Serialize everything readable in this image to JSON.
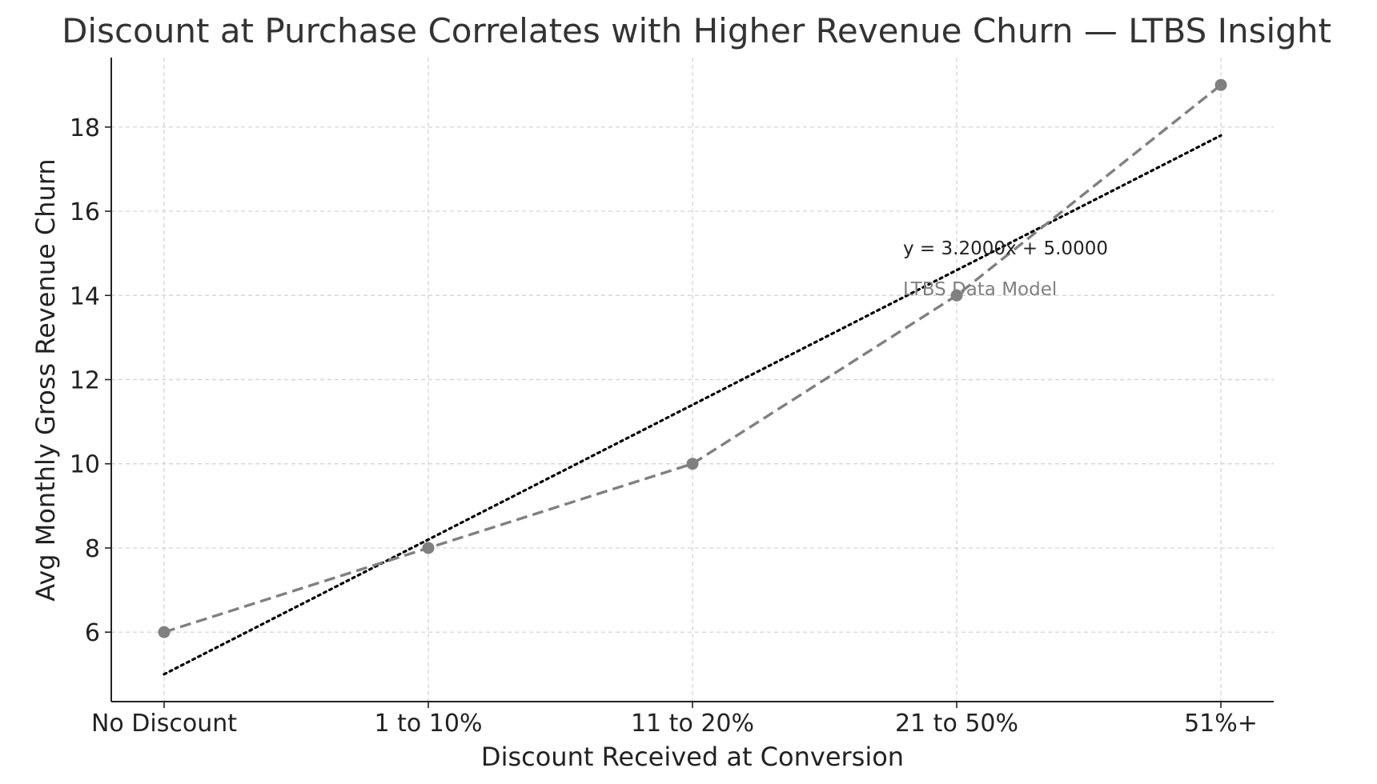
{
  "chart_data": {
    "type": "line",
    "title": "Discount at Purchase Correlates with Higher Revenue Churn — LTBS Insight",
    "xlabel": "Discount Received at Conversion",
    "ylabel": "Avg Monthly Gross Revenue Churn",
    "categories": [
      "No Discount",
      "1 to 10%",
      "11 to 20%",
      "21 to 50%",
      "51%+"
    ],
    "series": [
      {
        "values": [
          6,
          8,
          10,
          14,
          19
        ],
        "color": "#808080",
        "line_style": "dashed",
        "marker": "circle"
      }
    ],
    "trendline": {
      "slope": 3.2,
      "intercept": 5.0,
      "start": 5.0,
      "end": 17.8,
      "color": "#000000",
      "line_style": "dotted"
    },
    "annotations": [
      {
        "text": "y = 3.2000x + 5.0000",
        "style": "equation"
      },
      {
        "text": "LTBS Data Model",
        "style": "watermark"
      }
    ],
    "yticks": [
      6,
      8,
      10,
      12,
      14,
      16,
      18
    ],
    "ylim": [
      4.35,
      19.65
    ],
    "grid": true,
    "legend": "none"
  }
}
